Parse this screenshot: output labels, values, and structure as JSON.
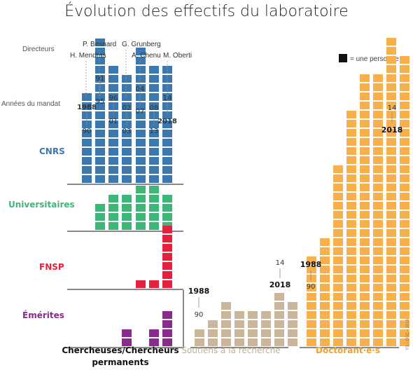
{
  "title": "Évolution des effectifs du laboratoire",
  "legend": {
    "text": "= une personne",
    "swatch_color": "#111111"
  },
  "side_labels": {
    "directeurs": "Directeurs",
    "annees": "Années du mandat"
  },
  "credit": "YS - OSC - 2018",
  "colors": {
    "CNRS": "#3b78b0",
    "Universitaires": "#3db777",
    "FNSP": "#e4223f",
    "Emerites": "#8a2a8c",
    "soutiens": "#c9b69b",
    "doctorants": "#f7b04a"
  },
  "chart_data": {
    "type": "bar",
    "unit": "une personne par carré",
    "directors": [
      {
        "name": "H. Mendras",
        "terms": [
          "1988",
          "90"
        ]
      },
      {
        "name": "P. Besnard",
        "terms": [
          "91",
          "95"
        ]
      },
      {
        "name": "G. Grunberg",
        "terms": [
          "96",
          "01"
        ]
      },
      {
        "name": "",
        "terms": [
          "02",
          "03"
        ]
      },
      {
        "name": "A. Chenu",
        "terms": [
          "04",
          "07"
        ]
      },
      {
        "name": "M. Oberti",
        "terms": [
          "08",
          "13"
        ]
      },
      {
        "name": "",
        "terms": [
          "14",
          "2018"
        ]
      }
    ],
    "chercheurs": {
      "label": "Chercheuses/Chercheurs permanents",
      "x": [
        "1988",
        "95",
        "01",
        "03",
        "07",
        "13",
        "2018"
      ],
      "series": [
        {
          "name": "CNRS",
          "values": [
            10,
            16,
            13,
            12,
            15,
            13,
            13
          ]
        },
        {
          "name": "Universitaires",
          "values": [
            0,
            3,
            4,
            4,
            5,
            5,
            4
          ]
        },
        {
          "name": "FNSP",
          "values": [
            0,
            0,
            0,
            0,
            1,
            1,
            7
          ]
        },
        {
          "name": "Émérites",
          "values": [
            0,
            0,
            0,
            2,
            0,
            2,
            4
          ]
        }
      ]
    },
    "soutiens": {
      "label": "Soutiens à la recherche",
      "x": [
        "1988",
        "90",
        "",
        "",
        "",
        "",
        "14",
        "2018"
      ],
      "values": [
        2,
        3,
        5,
        4,
        4,
        4,
        6,
        5
      ]
    },
    "doctorants": {
      "label": "Doctorant·e·s",
      "x": [
        "1988",
        "90",
        "",
        "",
        "",
        "",
        "14",
        "2018"
      ],
      "values": [
        10,
        12,
        20,
        26,
        30,
        30,
        34,
        32
      ]
    }
  }
}
